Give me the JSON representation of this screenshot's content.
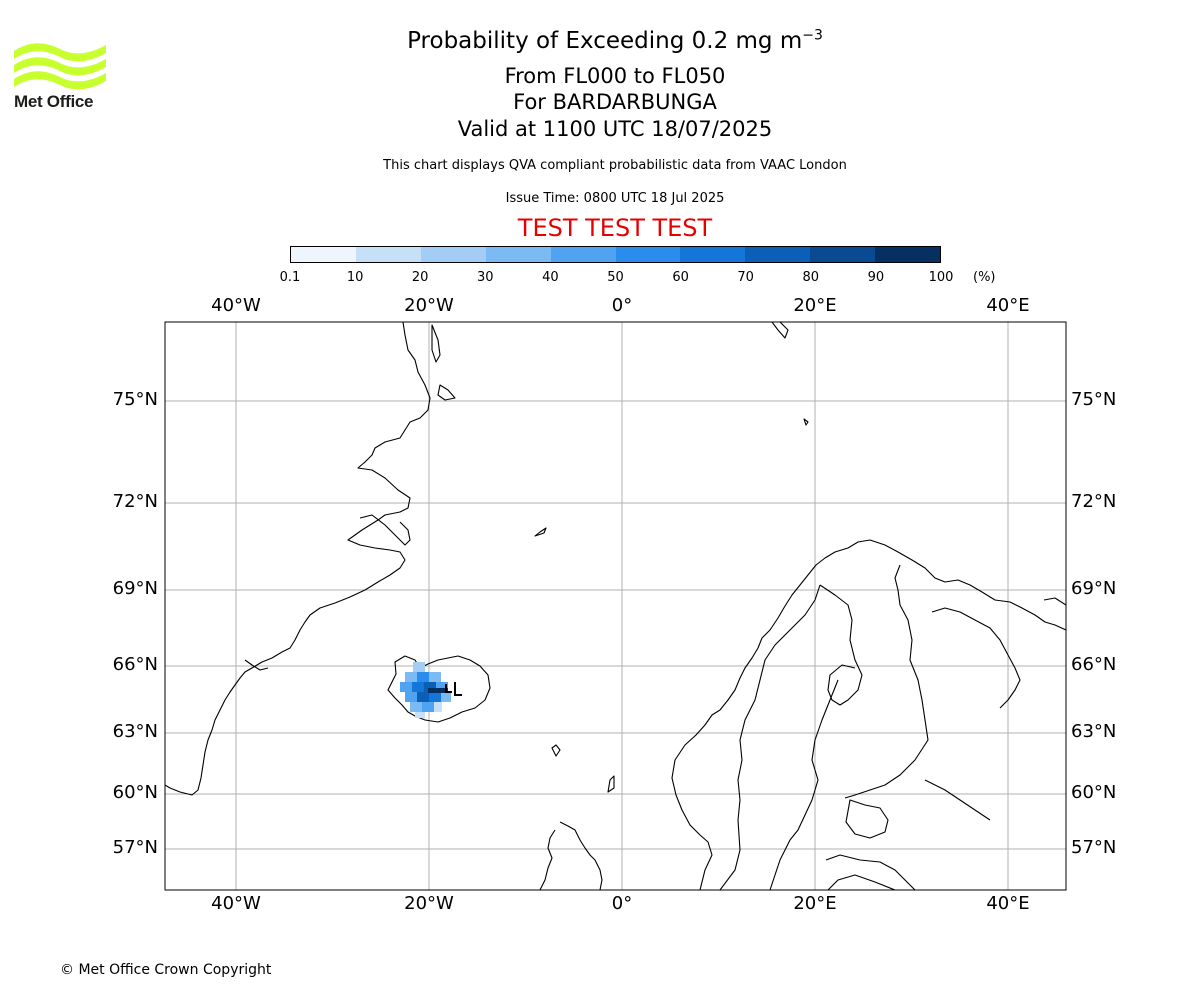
{
  "logo": {
    "text": "Met Office",
    "icon": "met-office-wave-logo"
  },
  "title": {
    "main": "Probability of Exceeding 0.2 mg m",
    "exponent": "−3",
    "line2": "From FL000 to FL050",
    "line3": "For BARDARBUNGA",
    "line4": "Valid at 1100 UTC 18/07/2025"
  },
  "disclaimer": "This chart displays QVA compliant probabilistic data from VAAC London",
  "issue_time": "Issue Time: 0800 UTC 18 Jul 2025",
  "test_banner": "TEST TEST TEST",
  "test_color": "#e60000",
  "colorbar": {
    "ticks": [
      "0.1",
      "10",
      "20",
      "30",
      "40",
      "50",
      "60",
      "70",
      "80",
      "90",
      "100"
    ],
    "unit": "(%)",
    "colors": [
      "#eef5fd",
      "#c6e0f8",
      "#a4cdf6",
      "#7cbaf4",
      "#4fa3f1",
      "#2a8ded",
      "#1476d8",
      "#0b5fb7",
      "#094a93",
      "#062f62"
    ]
  },
  "axes": {
    "lon_labels": [
      "40°W",
      "20°W",
      "0°",
      "20°E",
      "40°E"
    ],
    "lat_labels": [
      "75°N",
      "72°N",
      "69°N",
      "66°N",
      "63°N",
      "60°N",
      "57°N"
    ]
  },
  "plume": {
    "source": "BARDARBUNGA",
    "approx_center": {
      "lon": -20.5,
      "lat": 64.8
    },
    "max_probability_band": "70-80"
  },
  "copyright": "© Met Office Crown Copyright"
}
